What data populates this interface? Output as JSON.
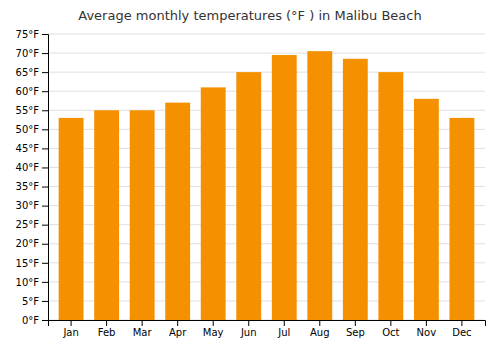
{
  "chart_data": {
    "type": "bar",
    "title": "Average monthly temperatures (°F ) in Malibu Beach",
    "categories": [
      "Jan",
      "Feb",
      "Mar",
      "Apr",
      "May",
      "Jun",
      "Jul",
      "Aug",
      "Sep",
      "Oct",
      "Nov",
      "Dec"
    ],
    "values": [
      53,
      55,
      55,
      57,
      61,
      65,
      69.5,
      70.5,
      68.5,
      65,
      58,
      53
    ],
    "color": "#F59000",
    "ylim": [
      0,
      75
    ],
    "yticks": [
      {
        "value": 0,
        "label": "0°F"
      },
      {
        "value": 5,
        "label": "5°F"
      },
      {
        "value": 10,
        "label": "10°F"
      },
      {
        "value": 15,
        "label": "15°F"
      },
      {
        "value": 20,
        "label": "20°F"
      },
      {
        "value": 25,
        "label": "25°F"
      },
      {
        "value": 30,
        "label": "30°F"
      },
      {
        "value": 35,
        "label": "35°F"
      },
      {
        "value": 40,
        "label": "40°F"
      },
      {
        "value": 45,
        "label": "45°F"
      },
      {
        "value": 50,
        "label": "50°F"
      },
      {
        "value": 55,
        "label": "55°F"
      },
      {
        "value": 60,
        "label": "60°F"
      },
      {
        "value": 65,
        "label": "65°F"
      },
      {
        "value": 70,
        "label": "70°F"
      },
      {
        "value": 75,
        "label": "75°F"
      }
    ],
    "grid": true
  }
}
